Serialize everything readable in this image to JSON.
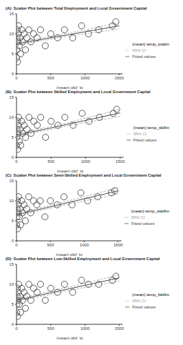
{
  "chart_data": [
    {
      "type": "scatter",
      "title": "(A): Scatter Plot between Total Employment and Local Government Capital",
      "x_label": "(mean) gfcf_lg",
      "xlim": [
        0,
        1550
      ],
      "xticks": [
        0,
        500,
        1000,
        1500
      ],
      "ylim": [
        0,
        15
      ],
      "yticks": [
        0,
        5,
        10,
        15
      ],
      "legend": "right",
      "grid": false,
      "series": [
        {
          "name": "(mean) temp_totalm",
          "type": "scatter",
          "marker": "circle",
          "color": "#555555",
          "x": [
            2,
            5,
            8,
            10,
            15,
            20,
            25,
            30,
            40,
            50,
            60,
            75,
            90,
            110,
            130,
            150,
            180,
            210,
            250,
            300,
            350,
            420,
            500,
            600,
            700,
            820,
            950,
            1050,
            1200,
            1400,
            1450
          ],
          "values": [
            4,
            6,
            9,
            11,
            3,
            8,
            10,
            12,
            7,
            9,
            5,
            11,
            8,
            10,
            6,
            9,
            11,
            8,
            10,
            9,
            11,
            7,
            10,
            9,
            11,
            9,
            12,
            10,
            11,
            12,
            13
          ]
        },
        {
          "name": "95% CI",
          "type": "line",
          "line_style": "dashed",
          "color": "#999999",
          "x": [
            0,
            750,
            1500
          ],
          "lower": [
            7.2,
            9.4,
            11.2
          ],
          "upper": [
            7.8,
            10.1,
            12.8
          ]
        },
        {
          "name": "Fitted values",
          "type": "line",
          "line_style": "solid",
          "color": "#444444",
          "x": [
            0,
            750,
            1500
          ],
          "values": [
            7.5,
            9.75,
            12
          ]
        }
      ]
    },
    {
      "type": "scatter",
      "title": "(B): Scatter Plot between Skilled Employment and Local Government Capital",
      "x_label": "(mean) gfcf_lg",
      "xlim": [
        0,
        1550
      ],
      "xticks": [
        0,
        500,
        1000,
        1500
      ],
      "ylim": [
        0,
        15
      ],
      "yticks": [
        0,
        5,
        10,
        15
      ],
      "legend": "right",
      "grid": false,
      "series": [
        {
          "name": "(mean) temp_skillm",
          "type": "scatter",
          "marker": "circle",
          "color": "#555555",
          "x": [
            2,
            5,
            8,
            10,
            15,
            20,
            25,
            30,
            40,
            50,
            60,
            75,
            90,
            110,
            130,
            150,
            180,
            210,
            250,
            300,
            350,
            420,
            500,
            600,
            700,
            820,
            950,
            1050,
            1200,
            1400,
            1450
          ],
          "values": [
            3,
            5,
            7,
            9,
            2,
            6,
            8,
            10,
            4,
            7,
            3,
            9,
            6,
            8,
            5,
            7,
            10,
            6,
            9,
            8,
            10,
            5,
            9,
            8,
            10,
            8,
            11,
            9,
            10,
            11,
            12
          ]
        },
        {
          "name": "95% CI",
          "type": "line",
          "line_style": "dashed",
          "color": "#999999",
          "x": [
            0,
            750,
            1500
          ],
          "lower": [
            5.2,
            7.9,
            10.2
          ],
          "upper": [
            5.8,
            8.7,
            12
          ]
        },
        {
          "name": "Fitted values",
          "type": "line",
          "line_style": "solid",
          "color": "#444444",
          "x": [
            0,
            750,
            1500
          ],
          "values": [
            5.5,
            8.3,
            11.1
          ]
        }
      ]
    },
    {
      "type": "scatter",
      "title": "(C): Scatter Plot between Semi-Skilled Employment and Local Government Capital",
      "x_label": "(mean) gfcf_lg",
      "xlim": [
        0,
        1550
      ],
      "xticks": [
        0,
        500,
        1000,
        1500
      ],
      "ylim": [
        0,
        15
      ],
      "yticks": [
        0,
        5,
        10,
        15
      ],
      "legend": "right",
      "grid": false,
      "series": [
        {
          "name": "(mean) temp_sskillm",
          "type": "scatter",
          "marker": "circle",
          "color": "#555555",
          "x": [
            2,
            5,
            8,
            10,
            15,
            20,
            25,
            30,
            40,
            50,
            60,
            75,
            90,
            110,
            130,
            150,
            180,
            210,
            250,
            300,
            350,
            420,
            500,
            600,
            700,
            820,
            950,
            1050,
            1200,
            1400,
            1450
          ],
          "values": [
            4,
            6,
            8,
            10,
            3,
            7,
            9,
            11,
            6,
            8,
            4,
            10,
            7,
            9,
            5,
            8,
            11,
            7,
            10,
            9,
            10,
            6,
            10,
            9,
            11,
            9,
            12,
            10,
            11,
            12,
            12.5
          ]
        },
        {
          "name": "95% CI",
          "type": "line",
          "line_style": "dashed",
          "color": "#999999",
          "x": [
            0,
            750,
            1500
          ],
          "lower": [
            6.2,
            9.1,
            11.7
          ],
          "upper": [
            6.8,
            9.9,
            13.3
          ]
        },
        {
          "name": "Fitted values",
          "type": "line",
          "line_style": "solid",
          "color": "#444444",
          "x": [
            0,
            750,
            1500
          ],
          "values": [
            6.5,
            9.5,
            12.5
          ]
        }
      ]
    },
    {
      "type": "scatter",
      "title": "(D): Scatter Plot between Low-Skilled Employment and Local Government Capital",
      "x_label": "(mean) gfcf_lg",
      "xlim": [
        0,
        1550
      ],
      "xticks": [
        0,
        500,
        1000,
        1500
      ],
      "ylim": [
        0,
        15
      ],
      "yticks": [
        0,
        5,
        10,
        15
      ],
      "legend": "right",
      "grid": false,
      "series": [
        {
          "name": "(mean) temp_lskillm",
          "type": "scatter",
          "marker": "circle",
          "color": "#555555",
          "x": [
            2,
            5,
            8,
            10,
            15,
            20,
            25,
            30,
            40,
            50,
            60,
            75,
            90,
            110,
            130,
            150,
            180,
            210,
            250,
            300,
            350,
            420,
            500,
            600,
            700,
            820,
            950,
            1050,
            1200,
            1400,
            1450
          ],
          "values": [
            3,
            5,
            7,
            9,
            2,
            6,
            8,
            10,
            5,
            7,
            3,
            9,
            6,
            8,
            4,
            7,
            10,
            6,
            9,
            8,
            10,
            6,
            9,
            8,
            10,
            8,
            11,
            10,
            10,
            11,
            12
          ]
        },
        {
          "name": "95% CI",
          "type": "line",
          "line_style": "dashed",
          "color": "#999999",
          "x": [
            0,
            750,
            1500
          ],
          "lower": [
            5.7,
            8.4,
            10.8
          ],
          "upper": [
            6.3,
            9.2,
            12.4
          ]
        },
        {
          "name": "Fitted values",
          "type": "line",
          "line_style": "solid",
          "color": "#444444",
          "x": [
            0,
            750,
            1500
          ],
          "values": [
            6,
            8.8,
            11.6
          ]
        }
      ]
    }
  ]
}
